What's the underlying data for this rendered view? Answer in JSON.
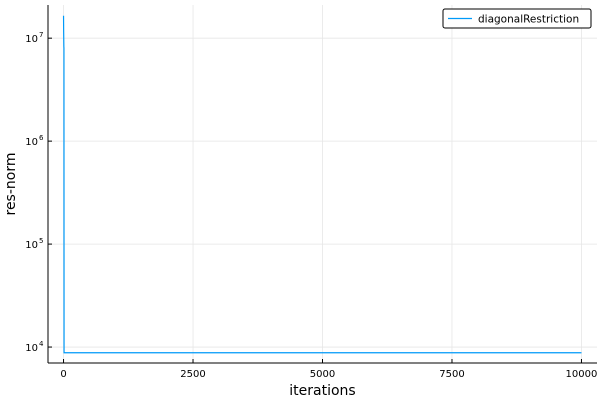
{
  "chart_data": {
    "type": "line",
    "xlabel": "iterations",
    "ylabel": "res-norm",
    "xlim": [
      -300,
      10300
    ],
    "ylim": [
      7000,
      21000000
    ],
    "yscale": "log",
    "grid": true,
    "legend_position": "top-right",
    "x_ticks": [
      0,
      2500,
      5000,
      7500,
      10000
    ],
    "x_tick_labels": [
      "0",
      "2500",
      "5000",
      "7500",
      "10000"
    ],
    "y_ticks": [
      {
        "value": 10000,
        "base": "10",
        "exp": "4"
      },
      {
        "value": 100000,
        "base": "10",
        "exp": "5"
      },
      {
        "value": 1000000,
        "base": "10",
        "exp": "6"
      },
      {
        "value": 10000000,
        "base": "10",
        "exp": "7"
      }
    ],
    "series": [
      {
        "name": "diagonalRestriction",
        "color": "#009af9",
        "x": [
          0,
          1,
          2,
          3,
          4,
          5,
          6,
          8,
          10,
          20,
          50,
          100,
          500,
          1000,
          2500,
          5000,
          7500,
          10000
        ],
        "y": [
          16500000,
          14000000,
          12000000,
          11000000,
          10000000,
          9000000,
          8300000,
          8000000,
          8800,
          8800,
          8800,
          8800,
          8800,
          8800,
          8800,
          8800,
          8800,
          8800
        ]
      }
    ]
  }
}
